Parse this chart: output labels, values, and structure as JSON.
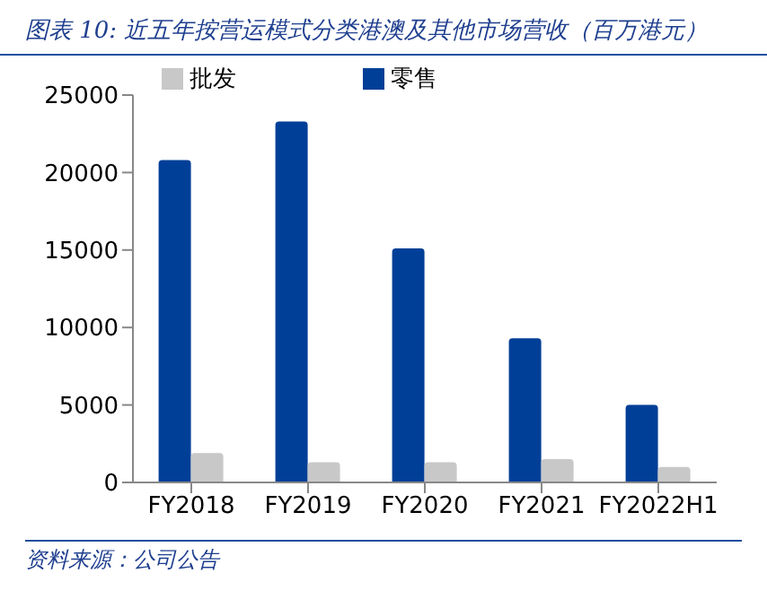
{
  "chart_data": {
    "type": "bar",
    "title": "图表 10:  近五年按营运模式分类港澳及其他市场营收（百万港元）",
    "categories": [
      "FY2018",
      "FY2019",
      "FY2020",
      "FY2021",
      "FY2022H1"
    ],
    "series": [
      {
        "name": "零售",
        "color": "#003f97",
        "values": [
          20800,
          23300,
          15100,
          9300,
          5000
        ]
      },
      {
        "name": "批发",
        "color": "#c8c8c8",
        "values": [
          1900,
          1300,
          1300,
          1500,
          1000
        ]
      }
    ],
    "ylim": [
      0,
      25000
    ],
    "yticks": [
      0,
      5000,
      10000,
      15000,
      20000,
      25000
    ],
    "grid": false,
    "legend": "top",
    "annotations": [
      "资料来源：公司公告"
    ]
  }
}
